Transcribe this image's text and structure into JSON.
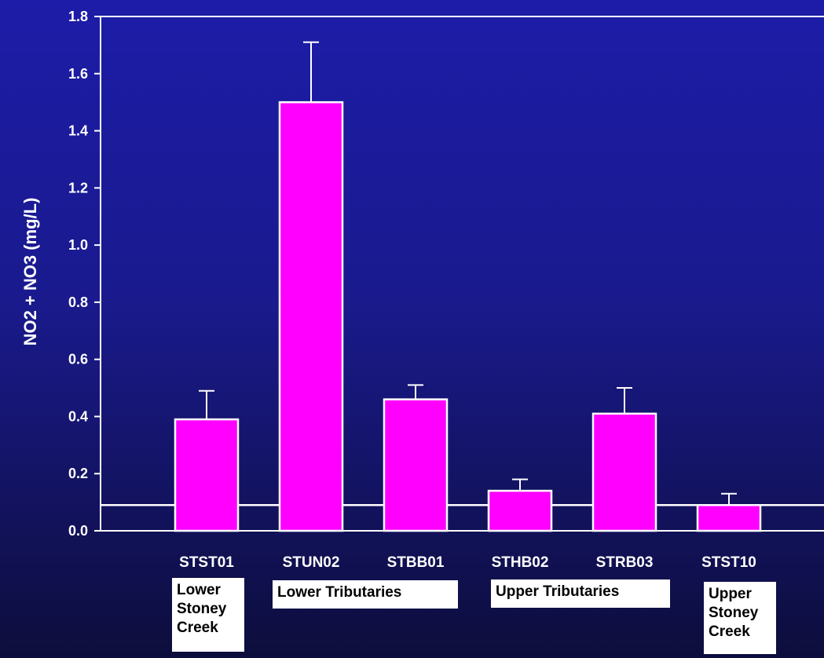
{
  "chart_data": {
    "type": "bar",
    "ylabel": "NO2 + NO3 (mg/L)",
    "xlabel": "",
    "ylim": [
      0,
      1.8
    ],
    "yticks": [
      0.0,
      0.2,
      0.4,
      0.6,
      0.8,
      1.0,
      1.2,
      1.4,
      1.6,
      1.8
    ],
    "ytick_labels": [
      "0.0",
      "0.2",
      "0.4",
      "0.6",
      "0.8",
      "1.0",
      "1.2",
      "1.4",
      "1.6",
      "1.8"
    ],
    "categories": [
      "STST01",
      "STUN02",
      "STBB01",
      "STHB02",
      "STRB03",
      "STST10"
    ],
    "values": [
      0.39,
      1.5,
      0.46,
      0.14,
      0.41,
      0.09
    ],
    "error_upper": [
      0.49,
      1.71,
      0.51,
      0.18,
      0.5,
      0.13
    ],
    "reference_line": 0.09,
    "bar_color": "#ff00ff",
    "grid": false,
    "groups": [
      {
        "label": "Lower\nStoney\nCreek"
      },
      {
        "label": "Lower Tributaries"
      },
      {
        "label": "Upper Tributaries"
      },
      {
        "label": "Upper\nStoney\nCreek"
      }
    ]
  }
}
